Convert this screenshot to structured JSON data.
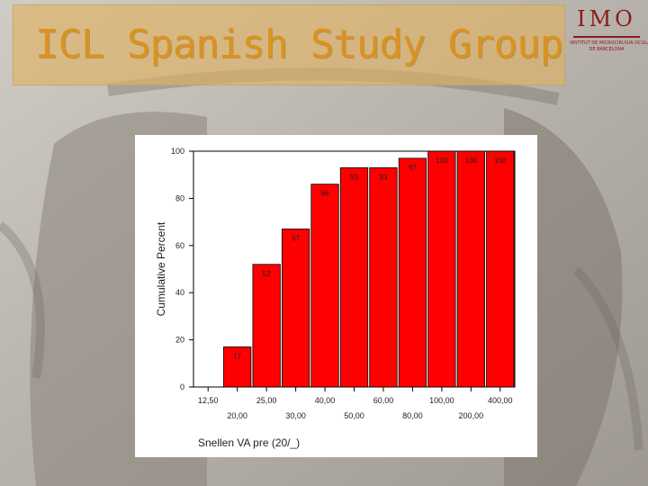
{
  "slide": {
    "title": "ICL Spanish Study Group",
    "logo": {
      "letters": "IMO",
      "line1": "INSTITUT DE MICROCIRUGIA OCULAR",
      "line2": "DE BARCELONA"
    },
    "colors": {
      "title_text": "#d9931f",
      "title_box": "#e2b260",
      "logo": "#8b1a1a",
      "bar_fill": "#ff0000"
    }
  },
  "chart_data": {
    "type": "bar",
    "title": "",
    "xlabel": "Snellen VA pre (20/_)",
    "ylabel": "Cumulative Percent",
    "ylim": [
      0,
      100
    ],
    "yticks": [
      0,
      20,
      40,
      60,
      80,
      100
    ],
    "categories": [
      "12,50",
      "20,00",
      "25,00",
      "30,00",
      "40,00",
      "50,00",
      "60,00",
      "80,00",
      "100,00",
      "200,00",
      "400,00"
    ],
    "values": [
      0,
      17,
      52,
      67,
      86,
      93,
      93,
      97,
      100,
      100,
      100
    ],
    "value_labels": [
      "",
      "17",
      "52",
      "67",
      "86",
      "93",
      "93",
      "97",
      "100",
      "100",
      "100"
    ],
    "grid": false,
    "legend": "none"
  }
}
